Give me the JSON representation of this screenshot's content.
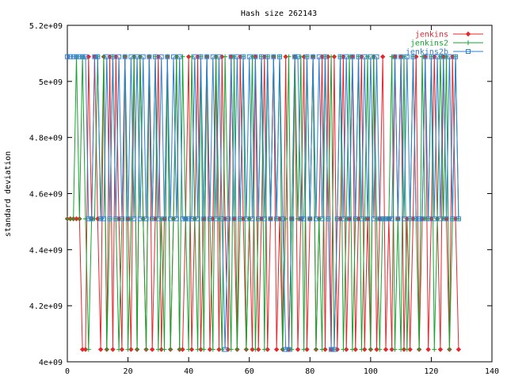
{
  "chart_data": {
    "type": "line",
    "title": "Hash size 262143",
    "xlabel": "",
    "ylabel": "standard deviation",
    "xlim": [
      0,
      140
    ],
    "ylim": [
      4000000000,
      5200000000
    ],
    "x_ticks": [
      0,
      20,
      40,
      60,
      80,
      100,
      120,
      140
    ],
    "x_tick_labels": [
      "0",
      "20",
      "40",
      "60",
      "80",
      "100",
      "120",
      "140"
    ],
    "y_ticks": [
      4000000000,
      4200000000,
      4400000000,
      4600000000,
      4800000000,
      5000000000,
      5200000000
    ],
    "y_tick_labels": [
      "4e+09",
      "4.2e+09",
      "4.4e+09",
      "4.6e+09",
      "4.8e+09",
      "5e+09",
      "5.2e+09"
    ],
    "grid": false,
    "legend_position": "top-right",
    "levels": {
      "low": 4044000000,
      "mid": 4510000000,
      "high": 5088000000
    },
    "series": [
      {
        "name": "jenkins",
        "color": "#e8262b",
        "marker": "diamond",
        "pattern": "1111100212102020210210202102012012012001201201201202102102101020120120102012012012012020201201201201020120102120101201201210210210"
      },
      {
        "name": "jenkins2",
        "color": "#14a52e",
        "marker": "plus",
        "pattern": "1112121011212012101201202102120102012021021020210210210201201201202121201202120212010212012012012012021011120102012102112012120121"
      },
      {
        "name": "jenkins2b",
        "color": "#2f7fd3",
        "marker": "square",
        "pattern": "2222222112211212121212121212121212121211112121212121012121212121212121210012211212121210012121212121212111112121212111212121212121"
      }
    ]
  }
}
